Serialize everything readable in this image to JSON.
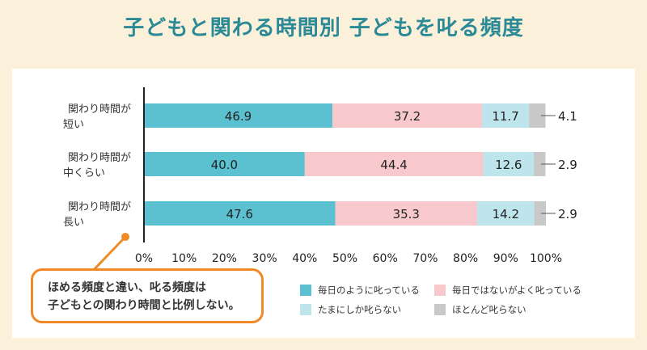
{
  "title": "子どもと関わる時間別 子どもを叱る頻度",
  "callout": {
    "line1": "ほめる頻度と違い、叱る頻度は",
    "line2": "子どもとの関わり時間と比例しない。"
  },
  "colors": {
    "s1": "#5bc0cf",
    "s2": "#f7c9cc",
    "s3": "#bfe5ec",
    "s4": "#c8c8c8",
    "title": "#2b8a95",
    "callout_border": "#ef8a26"
  },
  "chart_data": {
    "type": "bar",
    "orientation": "horizontal",
    "stacked": true,
    "categories": [
      [
        "関わり時間が",
        "短い"
      ],
      [
        "関わり時間が",
        "中くらい"
      ],
      [
        "関わり時間が",
        "長い"
      ]
    ],
    "series": [
      {
        "name": "毎日のように叱っている",
        "values": [
          46.9,
          40.0,
          47.6
        ]
      },
      {
        "name": "毎日ではないがよく叱っている",
        "values": [
          37.2,
          44.4,
          35.3
        ]
      },
      {
        "name": "たまにしか叱らない",
        "values": [
          11.7,
          12.6,
          14.2
        ]
      },
      {
        "name": "ほとんど叱らない",
        "values": [
          4.1,
          2.9,
          2.9
        ]
      }
    ],
    "value_labels": [
      [
        "46.9",
        "37.2",
        "11.7",
        "4.1"
      ],
      [
        "40.0",
        "44.4",
        "12.6",
        "2.9"
      ],
      [
        "47.6",
        "35.3",
        "14.2",
        "2.9"
      ]
    ],
    "xlim": [
      0,
      100
    ],
    "xticks": [
      "0%",
      "10%",
      "20%",
      "30%",
      "40%",
      "50%",
      "60%",
      "70%",
      "80%",
      "90%",
      "100%"
    ],
    "legend_position": "bottom-right"
  }
}
